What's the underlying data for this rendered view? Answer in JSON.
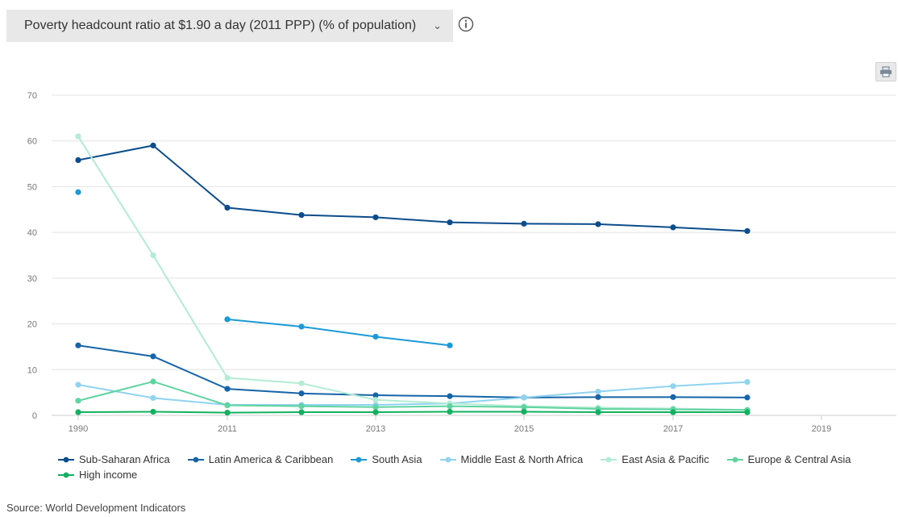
{
  "header": {
    "indicator_label": "Poverty headcount ratio at $1.90 a day (2011 PPP) (% of population)"
  },
  "source_text": "Source: World Development Indicators",
  "chart_data": {
    "type": "line",
    "x": [
      "1990",
      "2002",
      "2011",
      "2012",
      "2013",
      "2014",
      "2015",
      "2016",
      "2017",
      "2018"
    ],
    "x_tick_labels": [
      "1990",
      "2011",
      "2013",
      "2015",
      "2017",
      "2019"
    ],
    "y_ticks": [
      0,
      10,
      20,
      30,
      40,
      50,
      60,
      70
    ],
    "ylim": [
      0,
      70
    ],
    "grid": true,
    "legend_position": "bottom",
    "series": [
      {
        "name": "Sub-Saharan Africa",
        "color": "#0b4c8c",
        "values": [
          55.8,
          59.0,
          45.4,
          43.8,
          43.3,
          42.2,
          41.9,
          41.8,
          41.1,
          40.3
        ]
      },
      {
        "name": "Latin America & Caribbean",
        "color": "#1565a8",
        "values": [
          15.3,
          12.9,
          5.8,
          4.8,
          4.4,
          4.2,
          3.9,
          4.0,
          4.0,
          3.9
        ]
      },
      {
        "name": "South Asia",
        "color": "#1b9ad6",
        "values": [
          48.8,
          null,
          21.0,
          19.4,
          17.2,
          15.3,
          null,
          null,
          null,
          null
        ]
      },
      {
        "name": "Middle East & North Africa",
        "color": "#8fd3f1",
        "values": [
          6.7,
          3.8,
          2.3,
          2.3,
          2.3,
          2.6,
          3.9,
          5.2,
          6.4,
          7.3
        ]
      },
      {
        "name": "East Asia & Pacific",
        "color": "#b3ecd5",
        "values": [
          61.0,
          35.0,
          8.2,
          7.0,
          3.4,
          2.6,
          2.0,
          1.7,
          1.5,
          1.2
        ]
      },
      {
        "name": "Europe & Central Asia",
        "color": "#5fd3a0",
        "values": [
          3.2,
          7.4,
          2.2,
          2.0,
          1.8,
          2.0,
          1.8,
          1.4,
          1.3,
          1.2
        ]
      },
      {
        "name": "High income",
        "color": "#13b15f",
        "values": [
          0.7,
          0.8,
          0.6,
          0.7,
          0.7,
          0.8,
          0.8,
          0.7,
          0.7,
          0.7
        ]
      }
    ]
  }
}
